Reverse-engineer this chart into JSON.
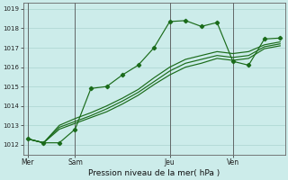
{
  "title": "Pression niveau de la mer( hPa )",
  "bg_color": "#ccecea",
  "grid_color": "#aad4d0",
  "line_color": "#1a6b1a",
  "ylim": [
    1011.5,
    1019.3
  ],
  "yticks": [
    1012,
    1013,
    1014,
    1015,
    1016,
    1017,
    1018,
    1019
  ],
  "day_labels": [
    "Mer",
    "Sam",
    "Jeu",
    "Ven"
  ],
  "day_positions": [
    0,
    3,
    9,
    13
  ],
  "vline_x": [
    0,
    3,
    9,
    13
  ],
  "total_points": 17,
  "series1": [
    1012.3,
    1012.1,
    1012.1,
    1012.8,
    1014.9,
    1015.0,
    1015.6,
    1016.1,
    1017.0,
    1018.35,
    1018.4,
    1018.1,
    1018.3,
    1016.3,
    1016.1,
    1017.45,
    1017.5
  ],
  "series2": [
    1012.3,
    1012.1,
    1012.8,
    1013.1,
    1013.4,
    1013.7,
    1014.1,
    1014.55,
    1015.1,
    1015.6,
    1016.0,
    1016.2,
    1016.45,
    1016.35,
    1016.45,
    1016.95,
    1017.1
  ],
  "series3": [
    1012.3,
    1012.1,
    1012.9,
    1013.2,
    1013.5,
    1013.85,
    1014.25,
    1014.7,
    1015.25,
    1015.8,
    1016.2,
    1016.4,
    1016.6,
    1016.5,
    1016.6,
    1017.05,
    1017.2
  ],
  "series4": [
    1012.3,
    1012.1,
    1013.0,
    1013.35,
    1013.65,
    1014.0,
    1014.4,
    1014.85,
    1015.45,
    1016.0,
    1016.4,
    1016.6,
    1016.8,
    1016.7,
    1016.8,
    1017.15,
    1017.3
  ],
  "figsize": [
    3.2,
    2.0
  ],
  "dpi": 100
}
